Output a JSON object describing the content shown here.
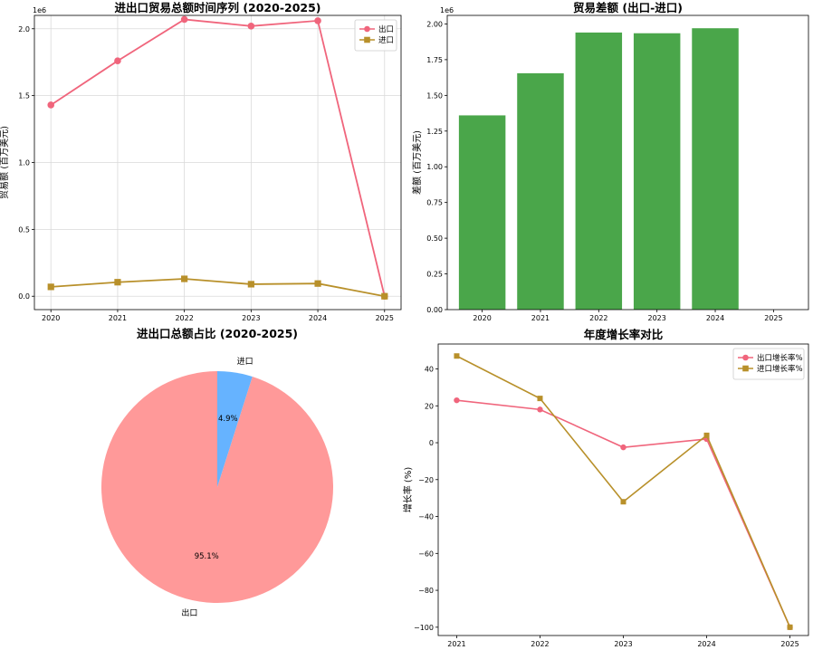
{
  "chart_data": [
    {
      "id": "trade_totals",
      "type": "line",
      "title": "进出口贸易总额时间序列 (2020-2025)",
      "xlabel": "",
      "ylabel": "贸易额 (百万美元)",
      "y_scale_label": "1e6",
      "categories": [
        "2020",
        "2021",
        "2022",
        "2023",
        "2024",
        "2025"
      ],
      "ylim": [
        -0.1,
        2.1
      ],
      "yticks": [
        0.0,
        0.5,
        1.0,
        1.5,
        2.0
      ],
      "ytick_labels": [
        "0.0",
        "0.5",
        "1.0",
        "1.5",
        "2.0"
      ],
      "grid": true,
      "legend": "top-right",
      "series": [
        {
          "name": "出口",
          "marker": "circle",
          "color": "#f0657c",
          "values": [
            1.43,
            1.76,
            2.07,
            2.02,
            2.06,
            0.0
          ]
        },
        {
          "name": "进口",
          "marker": "square",
          "color": "#b8902a",
          "values": [
            0.07,
            0.105,
            0.13,
            0.09,
            0.095,
            0.0
          ]
        }
      ]
    },
    {
      "id": "trade_balance",
      "type": "bar",
      "title": "贸易差额 (出口-进口)",
      "xlabel": "",
      "ylabel": "差额 (百万美元)",
      "y_scale_label": "1e6",
      "categories": [
        "2020",
        "2021",
        "2022",
        "2023",
        "2024",
        "2025"
      ],
      "values": [
        1.36,
        1.655,
        1.94,
        1.935,
        1.97,
        0.0
      ],
      "ylim": [
        0,
        2.06
      ],
      "yticks": [
        0.0,
        0.25,
        0.5,
        0.75,
        1.0,
        1.25,
        1.5,
        1.75,
        2.0
      ],
      "ytick_labels": [
        "0.00",
        "0.25",
        "0.50",
        "0.75",
        "1.00",
        "1.25",
        "1.50",
        "1.75",
        "2.00"
      ],
      "grid": false,
      "color": "#4aa64a"
    },
    {
      "id": "trade_share",
      "type": "pie",
      "title": "进出口总额占比 (2020-2025)",
      "labels": [
        "出口",
        "进口"
      ],
      "values": [
        95.1,
        4.9
      ],
      "pct_labels": [
        "95.1%",
        "4.9%"
      ],
      "colors": [
        "#ff9999",
        "#66b3ff"
      ]
    },
    {
      "id": "growth_rates",
      "type": "line",
      "title": "年度增长率对比",
      "xlabel": "",
      "ylabel": "增长率 (%)",
      "categories": [
        "2021",
        "2022",
        "2023",
        "2024",
        "2025"
      ],
      "ylim": [
        -104.5,
        53.5
      ],
      "yticks": [
        -100,
        -80,
        -60,
        -40,
        -20,
        0,
        20,
        40
      ],
      "ytick_labels": [
        "−100",
        "−80",
        "−60",
        "−40",
        "−20",
        "0",
        "20",
        "40"
      ],
      "grid": false,
      "legend": "top-right",
      "series": [
        {
          "name": "出口增长率%",
          "marker": "circle",
          "color": "#f0657c",
          "values": [
            23,
            18,
            -2.5,
            2,
            -100
          ]
        },
        {
          "name": "进口增长率%",
          "marker": "square",
          "color": "#b8902a",
          "values": [
            47,
            24,
            -32,
            4,
            -100
          ]
        }
      ]
    }
  ]
}
